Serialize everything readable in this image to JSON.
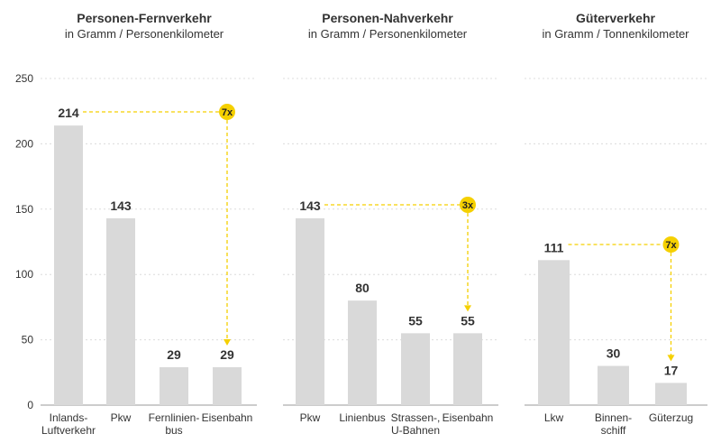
{
  "chart_data": {
    "type": "bar",
    "ylim": [
      0,
      250
    ],
    "yticks": [
      "0",
      "50",
      "100",
      "150",
      "200",
      "250"
    ],
    "grid": true,
    "colors": {
      "bar": "#d9d9d9",
      "accent": "#f5d000",
      "grid": "#dcdcdc",
      "axis": "#999999",
      "text": "#333333"
    },
    "panels": [
      {
        "title": "Personen-Fernverkehr",
        "subtitle": "in Gramm / Personenkilometer",
        "categories": [
          [
            "Inlands-",
            "Luftverkehr"
          ],
          [
            "Pkw"
          ],
          [
            "Fernlinien-",
            "bus"
          ],
          [
            "Eisenbahn"
          ]
        ],
        "values": [
          214,
          143,
          29,
          29
        ],
        "comparison": {
          "from": 0,
          "to": 3,
          "label": "7x"
        }
      },
      {
        "title": "Personen-Nahverkehr",
        "subtitle": "in Gramm / Personenkilometer",
        "categories": [
          [
            "Pkw"
          ],
          [
            "Linienbus"
          ],
          [
            "Strassen-,",
            "U-Bahnen"
          ],
          [
            "Eisenbahn"
          ]
        ],
        "values": [
          143,
          80,
          55,
          55
        ],
        "comparison": {
          "from": 0,
          "to": 3,
          "label": "3x"
        }
      },
      {
        "title": "Güterverkehr",
        "subtitle": "in Gramm / Tonnenkilometer",
        "categories": [
          [
            "Lkw"
          ],
          [
            "Binnen-",
            "schiff"
          ],
          [
            "Güterzug"
          ]
        ],
        "values": [
          111,
          30,
          17
        ],
        "comparison": {
          "from": 0,
          "to": 2,
          "label": "7x"
        }
      }
    ]
  }
}
